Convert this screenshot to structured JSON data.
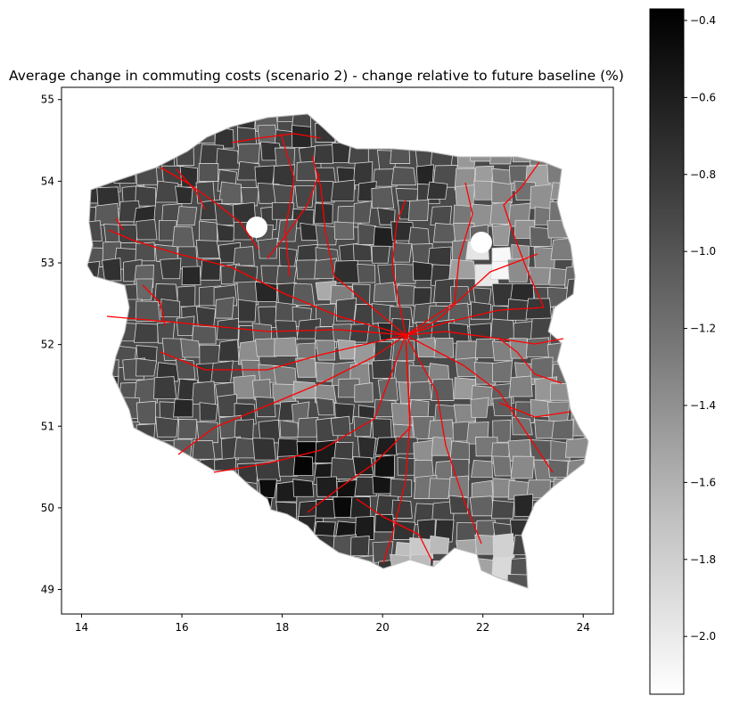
{
  "title": "Average change in commuting costs (scenario 2) - change relative to future baseline (%)",
  "map": {
    "x_range": [
      13.6,
      24.6
    ],
    "y_range": [
      48.7,
      55.15
    ],
    "x_ticks": [
      14,
      16,
      18,
      20,
      22,
      24
    ],
    "y_ticks": [
      49,
      50,
      51,
      52,
      53,
      54,
      55
    ],
    "region_fill_note_colors": {
      "dark": "#111111",
      "mid": "#555555",
      "light": "#dddddd"
    },
    "border_color": "#d9d9d9",
    "rail_color": "#ff0000"
  },
  "colorbar": {
    "min": -2.15,
    "max": -0.37,
    "ticks": [
      -0.4,
      -0.6,
      -0.8,
      -1.0,
      -1.2,
      -1.4,
      -1.6,
      -1.8,
      -2.0
    ],
    "tick_labels": [
      "−0.4",
      "−0.6",
      "−0.8",
      "−1.0",
      "−1.2",
      "−1.4",
      "−1.6",
      "−1.8",
      "−2.0"
    ],
    "cmap": "Greys"
  }
}
